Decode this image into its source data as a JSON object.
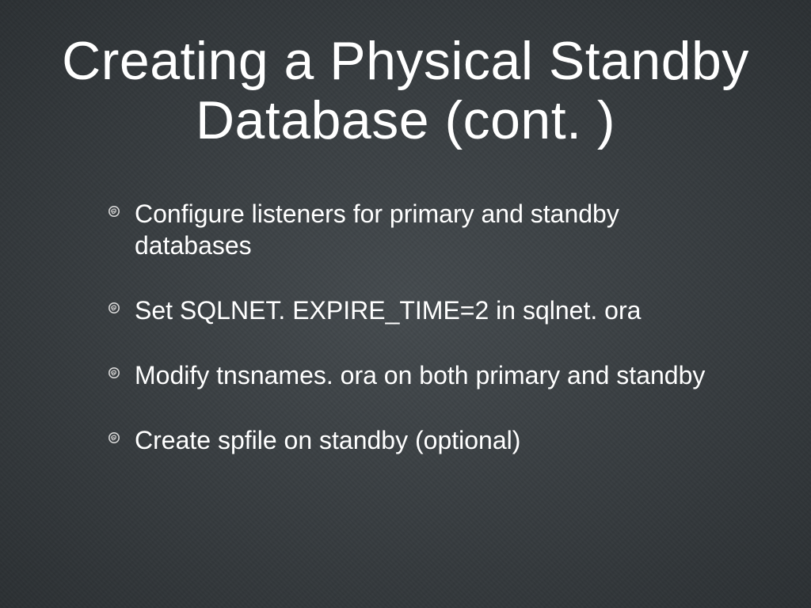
{
  "slide": {
    "title": "Creating a Physical Standby Database (cont. )",
    "title_fontsize": 68,
    "title_color": "#ffffff",
    "bullets": [
      {
        "text": "Configure listeners for primary and standby databases"
      },
      {
        "text": "Set SQLNET. EXPIRE_TIME=2 in sqlnet. ora"
      },
      {
        "text": "Modify tnsnames. ora on both primary and standby"
      },
      {
        "text": "Create spfile on standby (optional)"
      }
    ],
    "bullet_fontsize": 32,
    "bullet_color": "#ffffff",
    "bullet_icon": {
      "stroke": "#d8d8d8",
      "scribble": "#bfbfbf"
    },
    "background_color": "#3a4044"
  }
}
